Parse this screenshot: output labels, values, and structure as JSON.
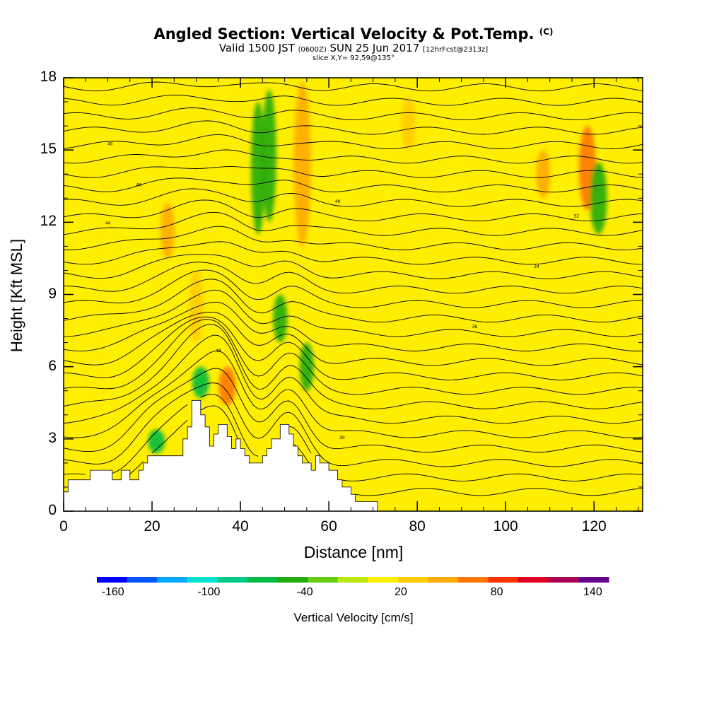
{
  "chart_data": {
    "type": "heatmap",
    "title": "Angled Section: Vertical Velocity & Pot.Temp.",
    "title_tag": "(C)",
    "subtitle_main": "Valid 1500 JST",
    "subtitle_utc": "(0600Z)",
    "subtitle_date": "SUN 25 Jun 2017",
    "subtitle_fcst": "[12hrFcst@2313z]",
    "slice_info": "slice X,Y= 92,59@135°",
    "xlabel": "Distance [nm]",
    "ylabel": "Height [Kft MSL]",
    "xlim": [
      0,
      131
    ],
    "ylim": [
      0,
      18
    ],
    "x_ticks": [
      "0",
      "20",
      "40",
      "60",
      "80",
      "100",
      "120"
    ],
    "y_ticks": [
      "0",
      "3",
      "6",
      "9",
      "12",
      "15",
      "18"
    ],
    "colorbar": {
      "label": "Vertical Velocity [cm/s]",
      "tick_labels": [
        "-160",
        "-100",
        "-40",
        "20",
        "80",
        "140"
      ],
      "tick_values": [
        -160,
        -100,
        -40,
        20,
        80,
        140
      ],
      "range": [
        -170,
        150
      ],
      "colors": [
        "#0000ff",
        "#0055ff",
        "#00aaff",
        "#00e0d0",
        "#00cc88",
        "#00bb44",
        "#22aa11",
        "#66cc11",
        "#bbe80a",
        "#ffee00",
        "#ffcc00",
        "#ffaa00",
        "#ff7700",
        "#ff3300",
        "#dd0022",
        "#aa0055",
        "#660088"
      ]
    },
    "terrain_profile_kft": [
      [
        0,
        0.8
      ],
      [
        1,
        0.8
      ],
      [
        1,
        1.3
      ],
      [
        6,
        1.3
      ],
      [
        6,
        1.7
      ],
      [
        11,
        1.7
      ],
      [
        11,
        1.3
      ],
      [
        13,
        1.3
      ],
      [
        13,
        1.7
      ],
      [
        15,
        1.7
      ],
      [
        15,
        1.3
      ],
      [
        17,
        1.3
      ],
      [
        17,
        1.7
      ],
      [
        18,
        1.7
      ],
      [
        18,
        2
      ],
      [
        19,
        2
      ],
      [
        19,
        2.3
      ],
      [
        27,
        2.3
      ],
      [
        27,
        3
      ],
      [
        28,
        3
      ],
      [
        28,
        3.5
      ],
      [
        29,
        3.5
      ],
      [
        29,
        4.6
      ],
      [
        31,
        4.6
      ],
      [
        31,
        4
      ],
      [
        32,
        4
      ],
      [
        32,
        3.5
      ],
      [
        33,
        3.5
      ],
      [
        33,
        2.7
      ],
      [
        34,
        2.7
      ],
      [
        34,
        3.2
      ],
      [
        35,
        3.2
      ],
      [
        35,
        3.6
      ],
      [
        37,
        3.6
      ],
      [
        37,
        3.1
      ],
      [
        38,
        3.1
      ],
      [
        38,
        2.6
      ],
      [
        39,
        2.6
      ],
      [
        39,
        3
      ],
      [
        40,
        3
      ],
      [
        40,
        2.6
      ],
      [
        41,
        2.6
      ],
      [
        41,
        2.3
      ],
      [
        42,
        2.3
      ],
      [
        42,
        2
      ],
      [
        45,
        2
      ],
      [
        45,
        2.3
      ],
      [
        46,
        2.3
      ],
      [
        46,
        2.6
      ],
      [
        47,
        2.6
      ],
      [
        47,
        3
      ],
      [
        49,
        3
      ],
      [
        49,
        3.6
      ],
      [
        51,
        3.6
      ],
      [
        51,
        3.2
      ],
      [
        52,
        3.2
      ],
      [
        52,
        2.7
      ],
      [
        53,
        2.7
      ],
      [
        53,
        2.3
      ],
      [
        54,
        2.3
      ],
      [
        54,
        2
      ],
      [
        56,
        2
      ],
      [
        56,
        1.7
      ],
      [
        57,
        1.7
      ],
      [
        57,
        2.3
      ],
      [
        58,
        2.3
      ],
      [
        58,
        2
      ],
      [
        60,
        2
      ],
      [
        60,
        1.7
      ],
      [
        62,
        1.7
      ],
      [
        62,
        1.3
      ],
      [
        63,
        1.3
      ],
      [
        63,
        1
      ],
      [
        65,
        1
      ],
      [
        65,
        0.7
      ],
      [
        66,
        0.7
      ],
      [
        66,
        0.4
      ],
      [
        71,
        0.4
      ],
      [
        71,
        0
      ]
    ],
    "velocity_features": [
      {
        "x": 23.5,
        "y_range": [
          10.5,
          12.8
        ],
        "value_cm_s": 40
      },
      {
        "x": 30,
        "y_range": [
          7,
          10
        ],
        "value_cm_s": 30
      },
      {
        "x": 37,
        "y_range": [
          4.4,
          6
        ],
        "value_cm_s": 60
      },
      {
        "x": 54,
        "y_range": [
          11,
          17.8
        ],
        "value_cm_s": 50
      },
      {
        "x": 78,
        "y_range": [
          15,
          17.2
        ],
        "value_cm_s": 30
      },
      {
        "x": 108.5,
        "y_range": [
          13,
          15
        ],
        "value_cm_s": 40
      },
      {
        "x": 118.5,
        "y_range": [
          12.5,
          16
        ],
        "value_cm_s": 60
      },
      {
        "x": 31,
        "y_range": [
          4.7,
          6
        ],
        "value_cm_s": -60
      },
      {
        "x": 49,
        "y_range": [
          7,
          9
        ],
        "value_cm_s": -40
      },
      {
        "x": 55,
        "y_range": [
          5,
          7
        ],
        "value_cm_s": -40
      },
      {
        "x": 21,
        "y_range": [
          2.4,
          3.4
        ],
        "value_cm_s": -60
      },
      {
        "x": 121,
        "y_range": [
          11.5,
          14.5
        ],
        "value_cm_s": -50
      },
      {
        "x": 44,
        "y_range": [
          11.5,
          17
        ],
        "value_cm_s": -40
      },
      {
        "x": 46.5,
        "y_range": [
          12,
          17.5
        ],
        "value_cm_s": -40
      }
    ],
    "isentrope_labels": [
      "40",
      "46",
      "44",
      "48",
      "40",
      "36",
      "34",
      "32",
      "30"
    ]
  }
}
